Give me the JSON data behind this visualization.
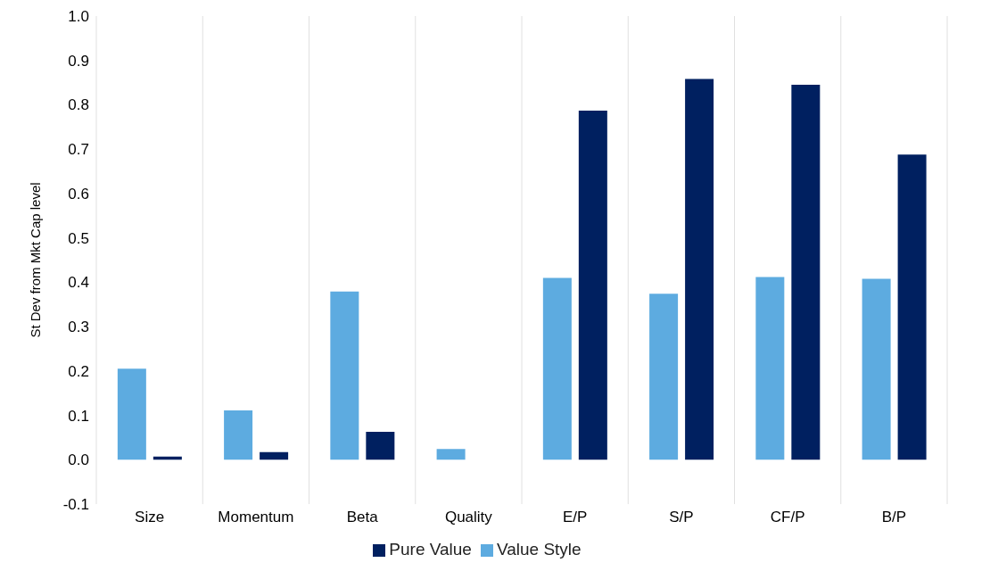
{
  "chart_data": {
    "type": "bar",
    "ylabel": "St Dev from Mkt Cap level",
    "categories": [
      "Size",
      "Momentum",
      "Beta",
      "Quality",
      "E/P",
      "S/P",
      "CF/P",
      "B/P"
    ],
    "series": [
      {
        "name": "Value Style",
        "color": "#5dabe0",
        "values": [
          0.205,
          0.111,
          0.379,
          0.024,
          0.41,
          0.374,
          0.412,
          0.408
        ]
      },
      {
        "name": "Pure Value",
        "color": "#002060",
        "values": [
          0.007,
          0.017,
          0.063,
          0,
          0.787,
          0.858,
          0.845,
          0.688
        ]
      }
    ],
    "ylim": [
      -0.1,
      1.0
    ],
    "yticks": [
      -0.1,
      {
        "value": 0,
        "label": "0.0"
      },
      0.1,
      0.2,
      0.3,
      0.4,
      0.5,
      0.6,
      0.7,
      0.8,
      0.9,
      {
        "value": 1,
        "label": "1.0"
      }
    ],
    "grid": "x",
    "legend": "bottom"
  }
}
